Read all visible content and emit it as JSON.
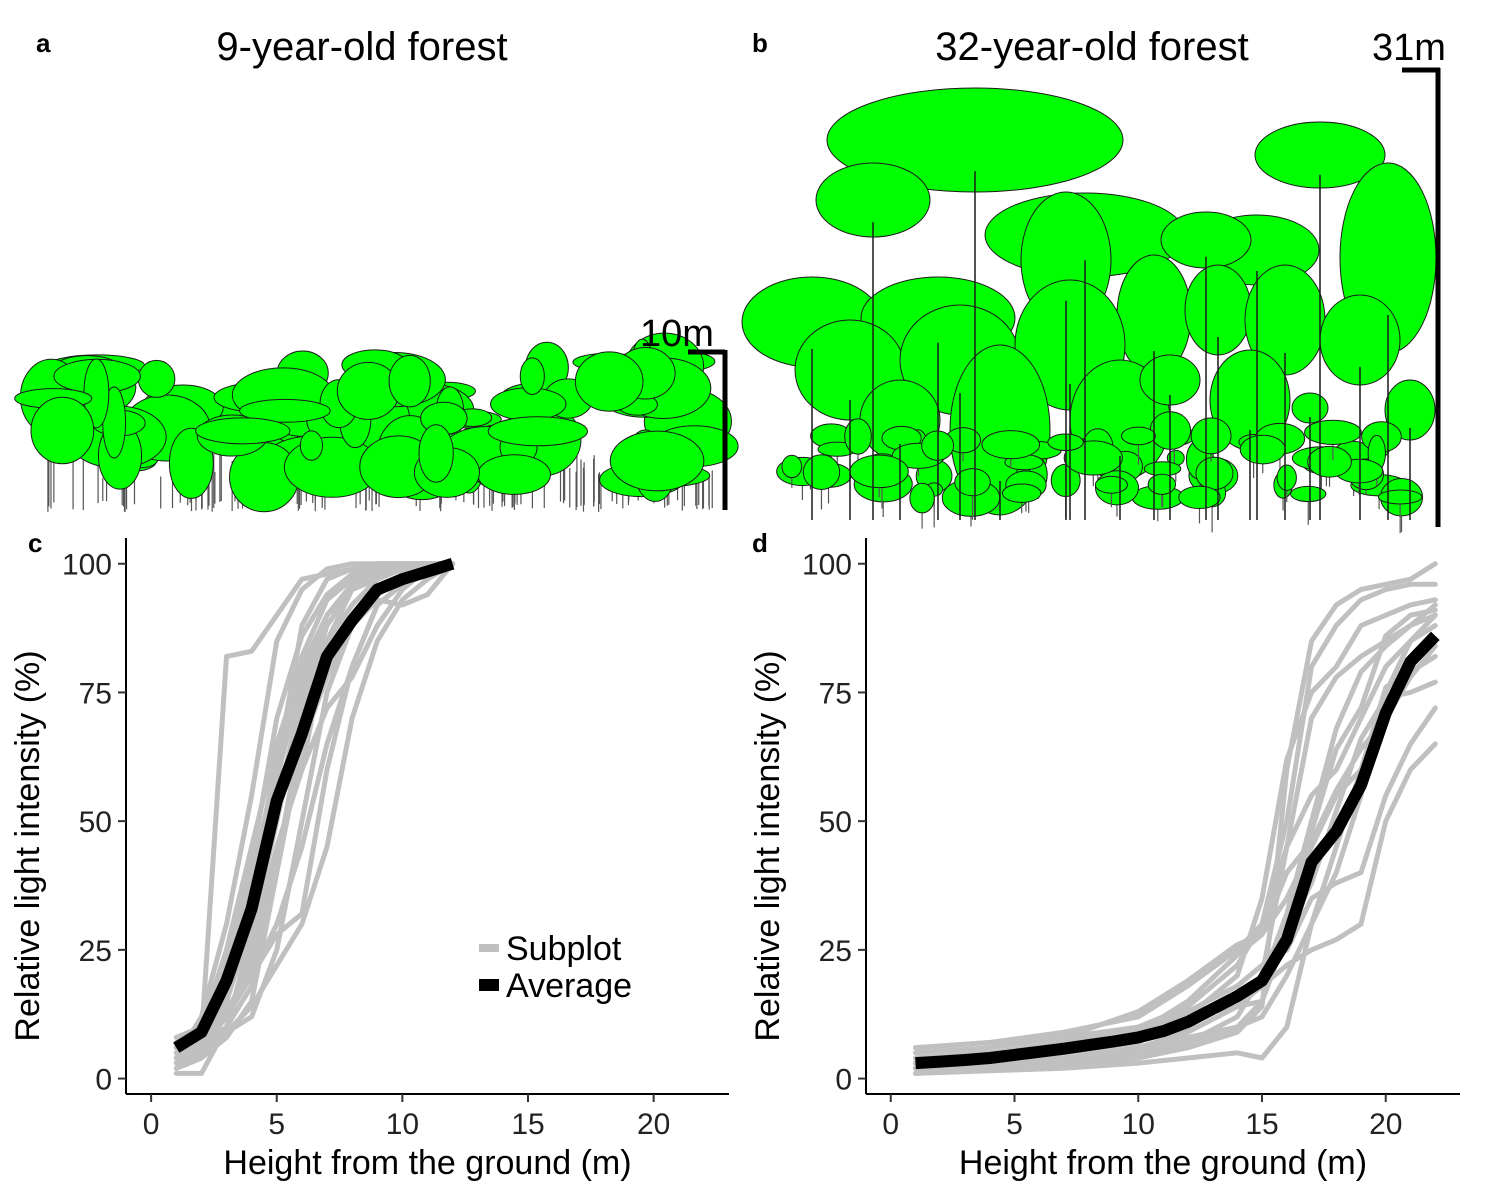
{
  "panels": {
    "a": {
      "letter": "a",
      "title": "9-year-old forest",
      "scale_label": "10m"
    },
    "b": {
      "letter": "b",
      "title": "32-year-old forest",
      "scale_label": "31m"
    },
    "c": {
      "letter": "c"
    },
    "d": {
      "letter": "d"
    }
  },
  "colors": {
    "crown": "#00ff00",
    "subplot": "#c0c0c0",
    "average": "#000000"
  },
  "chart_data": [
    {
      "id": "c",
      "type": "line",
      "xlabel": "Height from the ground (m)",
      "ylabel": "Relative light intensity (%)",
      "xlim": [
        -1,
        23
      ],
      "ylim": [
        -3,
        105
      ],
      "xticks": [
        0,
        5,
        10,
        15,
        20
      ],
      "yticks": [
        0,
        25,
        50,
        75,
        100
      ],
      "legend": {
        "position": "bottom-right",
        "subplot_label": "Subplot",
        "average_label": "Average"
      },
      "average": {
        "name": "Average",
        "x": [
          1,
          2,
          3,
          4,
          5,
          6,
          7,
          8,
          9,
          10,
          11,
          12
        ],
        "y": [
          6,
          9,
          19,
          33,
          54,
          67,
          82,
          89,
          95,
          97,
          98.5,
          100
        ]
      },
      "subplots": [
        {
          "x": [
            1,
            2,
            3,
            4,
            5,
            6,
            7,
            8,
            9,
            10,
            11,
            12
          ],
          "y": [
            3,
            8,
            82,
            83,
            90,
            97,
            98,
            99,
            100,
            100,
            100,
            100
          ]
        },
        {
          "x": [
            1,
            2,
            3,
            4,
            5,
            6,
            7,
            8,
            9,
            10,
            11,
            12
          ],
          "y": [
            4,
            12,
            30,
            55,
            85,
            95,
            99,
            100,
            100,
            100,
            100,
            100
          ]
        },
        {
          "x": [
            1,
            2,
            3,
            4,
            5,
            6,
            7,
            8,
            9,
            10,
            11,
            12
          ],
          "y": [
            1,
            1,
            10,
            25,
            45,
            60,
            85,
            92,
            97,
            99,
            100,
            100
          ]
        },
        {
          "x": [
            1,
            2,
            3,
            4,
            5,
            6,
            7,
            8,
            9,
            10,
            11,
            12
          ],
          "y": [
            6,
            9,
            22,
            40,
            58,
            78,
            90,
            96,
            98,
            99,
            100,
            100
          ]
        },
        {
          "x": [
            1,
            2,
            3,
            4,
            5,
            6,
            7,
            8,
            9,
            10,
            11,
            12
          ],
          "y": [
            5,
            7,
            15,
            30,
            55,
            70,
            80,
            90,
            95,
            98,
            100,
            100
          ]
        },
        {
          "x": [
            1,
            2,
            3,
            4,
            5,
            6,
            7,
            8,
            9,
            10,
            11,
            12
          ],
          "y": [
            2,
            4,
            8,
            15,
            40,
            65,
            78,
            88,
            94,
            97,
            99,
            100
          ]
        },
        {
          "x": [
            1,
            2,
            3,
            4,
            5,
            6,
            7,
            8,
            9,
            10,
            11,
            12
          ],
          "y": [
            8,
            10,
            25,
            45,
            65,
            80,
            90,
            95,
            97,
            99,
            100,
            100
          ]
        },
        {
          "x": [
            1,
            2,
            3,
            4,
            5,
            6,
            7,
            8,
            9,
            10,
            11,
            12
          ],
          "y": [
            4,
            6,
            12,
            20,
            30,
            45,
            65,
            80,
            92,
            96,
            98,
            100
          ]
        },
        {
          "x": [
            1,
            2,
            3,
            4,
            5,
            6,
            7,
            8,
            9,
            10,
            11,
            12
          ],
          "y": [
            3,
            5,
            9,
            14,
            22,
            30,
            45,
            70,
            85,
            93,
            97,
            100
          ]
        },
        {
          "x": [
            1,
            2,
            3,
            4,
            5,
            6,
            7,
            8,
            9,
            10,
            11,
            12
          ],
          "y": [
            5,
            7,
            10,
            18,
            45,
            60,
            72,
            78,
            88,
            95,
            99,
            100
          ]
        },
        {
          "x": [
            1,
            2,
            3,
            4,
            5,
            6,
            7,
            8,
            9,
            10,
            11,
            12
          ],
          "y": [
            6,
            8,
            12,
            20,
            28,
            32,
            60,
            80,
            92,
            96,
            99,
            100
          ]
        },
        {
          "x": [
            1,
            2,
            3,
            4,
            5,
            6,
            7,
            8,
            9,
            10,
            11,
            12
          ],
          "y": [
            4,
            6,
            15,
            35,
            60,
            88,
            97,
            99,
            100,
            100,
            100,
            100
          ]
        },
        {
          "x": [
            1,
            2,
            3,
            4,
            5,
            6,
            7,
            8,
            9,
            10,
            11,
            12
          ],
          "y": [
            3,
            5,
            13,
            22,
            42,
            68,
            85,
            95,
            99,
            100,
            100,
            100
          ]
        },
        {
          "x": [
            1,
            2,
            3,
            4,
            5,
            6,
            7,
            8,
            9,
            10,
            11,
            12
          ],
          "y": [
            6,
            9,
            20,
            42,
            70,
            86,
            94,
            98,
            100,
            100,
            100,
            100
          ]
        },
        {
          "x": [
            1,
            2,
            3,
            4,
            5,
            6,
            7,
            8,
            9,
            10,
            11,
            12
          ],
          "y": [
            2,
            4,
            10,
            28,
            50,
            72,
            88,
            95,
            98,
            100,
            100,
            100
          ]
        },
        {
          "x": [
            1,
            2,
            3,
            4,
            5,
            6,
            7,
            8,
            9,
            10,
            11,
            12
          ],
          "y": [
            5,
            6,
            9,
            12,
            25,
            50,
            75,
            88,
            93,
            92,
            94,
            100
          ]
        },
        {
          "x": [
            1,
            2,
            3,
            4,
            5,
            6,
            7,
            8,
            9,
            10,
            11,
            12
          ],
          "y": [
            7,
            10,
            18,
            30,
            52,
            75,
            90,
            96,
            99,
            100,
            100,
            100
          ]
        },
        {
          "x": [
            1,
            2,
            3,
            4,
            5,
            6,
            7,
            8,
            9,
            10,
            11,
            12
          ],
          "y": [
            3,
            6,
            17,
            38,
            62,
            82,
            93,
            97,
            99,
            100,
            100,
            100
          ]
        }
      ]
    },
    {
      "id": "d",
      "type": "line",
      "xlabel": "Height from the ground (m)",
      "ylabel": "Relative light intensity (%)",
      "xlim": [
        -1,
        23
      ],
      "ylim": [
        -3,
        105
      ],
      "xticks": [
        0,
        5,
        10,
        15,
        20
      ],
      "yticks": [
        0,
        25,
        50,
        75,
        100
      ],
      "average": {
        "name": "Average",
        "x": [
          1,
          2,
          3,
          4,
          5,
          6,
          7,
          8,
          9,
          10,
          11,
          12,
          13,
          14,
          15,
          16,
          17,
          18,
          19,
          20,
          21,
          22
        ],
        "y": [
          3,
          3.3,
          3.6,
          4,
          4.6,
          5.2,
          5.8,
          6.5,
          7.2,
          8,
          9.2,
          11,
          13.5,
          16,
          19,
          27,
          42,
          48,
          57,
          71,
          81,
          86
        ]
      },
      "subplots": [
        {
          "x": [
            1,
            4,
            7,
            10,
            12,
            14,
            15,
            16,
            17,
            18,
            19,
            20,
            21,
            22
          ],
          "y": [
            2,
            2.5,
            3,
            4,
            6,
            9,
            14,
            60,
            85,
            92,
            95,
            96,
            97,
            100
          ]
        },
        {
          "x": [
            1,
            4,
            7,
            10,
            12,
            14,
            15,
            16,
            17,
            18,
            19,
            20,
            21,
            22
          ],
          "y": [
            6,
            7,
            9,
            12,
            18,
            25,
            30,
            50,
            80,
            88,
            93,
            95,
            96,
            96
          ]
        },
        {
          "x": [
            1,
            4,
            7,
            10,
            12,
            14,
            15,
            16,
            17,
            18,
            19,
            20,
            21,
            22
          ],
          "y": [
            1,
            1.5,
            2,
            3,
            4,
            5,
            4,
            10,
            30,
            40,
            55,
            75,
            85,
            90
          ]
        },
        {
          "x": [
            1,
            4,
            7,
            10,
            12,
            14,
            15,
            16,
            17,
            18,
            19,
            20,
            21,
            22
          ],
          "y": [
            4,
            5,
            7,
            10,
            14,
            22,
            30,
            45,
            55,
            60,
            70,
            80,
            85,
            88
          ]
        },
        {
          "x": [
            1,
            4,
            7,
            10,
            12,
            14,
            15,
            16,
            17,
            18,
            19,
            20,
            21,
            22
          ],
          "y": [
            3,
            4,
            5,
            7,
            12,
            20,
            35,
            62,
            75,
            80,
            88,
            90,
            92,
            93
          ]
        },
        {
          "x": [
            1,
            4,
            7,
            10,
            12,
            14,
            15,
            16,
            17,
            18,
            19,
            20,
            21,
            22
          ],
          "y": [
            2,
            3,
            4,
            6,
            9,
            14,
            18,
            22,
            25,
            27,
            30,
            50,
            60,
            65
          ]
        },
        {
          "x": [
            1,
            4,
            7,
            10,
            12,
            14,
            15,
            16,
            17,
            18,
            19,
            20,
            21,
            22
          ],
          "y": [
            5,
            6,
            8,
            13,
            19,
            26,
            28,
            35,
            45,
            55,
            60,
            70,
            78,
            84
          ]
        },
        {
          "x": [
            1,
            4,
            7,
            10,
            12,
            14,
            15,
            16,
            17,
            18,
            19,
            20,
            21,
            22
          ],
          "y": [
            1,
            2,
            2.5,
            4,
            7,
            12,
            20,
            45,
            70,
            78,
            82,
            85,
            88,
            90
          ]
        },
        {
          "x": [
            1,
            4,
            7,
            10,
            12,
            14,
            15,
            16,
            17,
            18,
            19,
            20,
            21,
            22
          ],
          "y": [
            4,
            5,
            6,
            9,
            13,
            18,
            22,
            25,
            35,
            38,
            40,
            55,
            65,
            72
          ]
        },
        {
          "x": [
            1,
            4,
            7,
            10,
            12,
            14,
            15,
            16,
            17,
            18,
            19,
            20,
            21,
            22
          ],
          "y": [
            3,
            3.5,
            4,
            6,
            8,
            10,
            12,
            20,
            30,
            45,
            60,
            76,
            79,
            82
          ]
        },
        {
          "x": [
            1,
            4,
            7,
            10,
            12,
            14,
            15,
            16,
            17,
            18,
            19,
            20,
            21,
            22
          ],
          "y": [
            2,
            2.5,
            3,
            5,
            10,
            16,
            19,
            32,
            50,
            68,
            79,
            84,
            88,
            92
          ]
        },
        {
          "x": [
            1,
            4,
            7,
            10,
            12,
            14,
            15,
            16,
            17,
            18,
            19,
            20,
            21,
            22
          ],
          "y": [
            6,
            7,
            8,
            10,
            12,
            14,
            15,
            28,
            48,
            64,
            72,
            86,
            90,
            91
          ]
        },
        {
          "x": [
            1,
            4,
            7,
            10,
            12,
            14,
            15,
            16,
            17,
            18,
            19,
            20,
            21,
            22
          ],
          "y": [
            3,
            4,
            6,
            9,
            15,
            24,
            28,
            40,
            46,
            56,
            64,
            70,
            80,
            85
          ]
        },
        {
          "x": [
            1,
            4,
            7,
            10,
            12,
            14,
            15,
            16,
            17,
            18,
            19,
            20,
            21,
            22
          ],
          "y": [
            2,
            3,
            4,
            5,
            7,
            10,
            15,
            28,
            38,
            52,
            66,
            74,
            75,
            77
          ]
        }
      ]
    }
  ]
}
